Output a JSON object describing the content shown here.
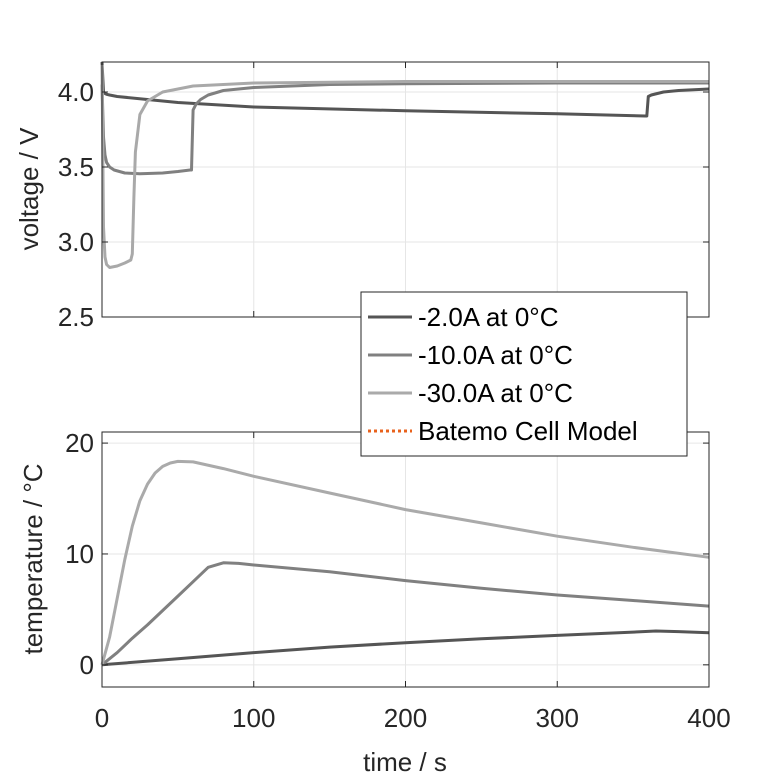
{
  "chart_data": [
    {
      "type": "line",
      "ylabel": "voltage / V",
      "xlim": [
        0,
        400
      ],
      "ylim": [
        2.5,
        4.2
      ],
      "yticks": [
        2.5,
        3.0,
        3.5,
        4.0
      ],
      "ytick_labels": [
        "2.5",
        "3.0",
        "3.5",
        "4.0"
      ],
      "xticks": [
        0,
        100,
        200,
        300,
        400
      ],
      "grid": true,
      "series": [
        {
          "name": "-2.0A at 0°C",
          "color": "#555555",
          "x": [
            0,
            1,
            2,
            3,
            5,
            10,
            50,
            100,
            200,
            300,
            358,
            359,
            360,
            362,
            370,
            380,
            400
          ],
          "y": [
            4.2,
            4.0,
            3.99,
            3.985,
            3.98,
            3.97,
            3.93,
            3.9,
            3.875,
            3.855,
            3.84,
            3.84,
            3.97,
            3.98,
            4.0,
            4.01,
            4.02
          ]
        },
        {
          "name": "-10.0A at 0°C",
          "color": "#808080",
          "x": [
            0,
            1,
            2,
            3,
            5,
            8,
            15,
            25,
            40,
            50,
            58,
            59,
            60,
            62,
            65,
            70,
            80,
            100,
            150,
            200,
            300,
            400
          ],
          "y": [
            4.05,
            3.7,
            3.58,
            3.53,
            3.5,
            3.48,
            3.46,
            3.455,
            3.46,
            3.47,
            3.48,
            3.48,
            3.88,
            3.92,
            3.95,
            3.98,
            4.01,
            4.03,
            4.05,
            4.055,
            4.06,
            4.06
          ]
        },
        {
          "name": "-30.0A at 0°C",
          "color": "#a9a9a9",
          "x": [
            0,
            1,
            2,
            3,
            5,
            10,
            15,
            19,
            20,
            21,
            22,
            25,
            30,
            40,
            60,
            100,
            200,
            400
          ],
          "y": [
            4.18,
            3.1,
            2.9,
            2.85,
            2.83,
            2.84,
            2.86,
            2.88,
            2.92,
            3.3,
            3.6,
            3.85,
            3.94,
            4.0,
            4.04,
            4.06,
            4.07,
            4.07
          ]
        }
      ]
    },
    {
      "type": "line",
      "xlabel": "time / s",
      "ylabel": "temperature / °C",
      "xlim": [
        0,
        400
      ],
      "ylim": [
        -2,
        21
      ],
      "yticks": [
        0,
        10,
        20
      ],
      "ytick_labels": [
        "0",
        "10",
        "20"
      ],
      "xticks": [
        0,
        100,
        200,
        300,
        400
      ],
      "xtick_labels": [
        "0",
        "100",
        "200",
        "300",
        "400"
      ],
      "grid": true,
      "series": [
        {
          "name": "-2.0A at 0°C",
          "color": "#555555",
          "x": [
            0,
            50,
            100,
            150,
            200,
            250,
            300,
            350,
            365,
            380,
            400
          ],
          "y": [
            0,
            0.55,
            1.1,
            1.6,
            2.0,
            2.35,
            2.65,
            2.95,
            3.05,
            3.0,
            2.9
          ]
        },
        {
          "name": "-10.0A at 0°C",
          "color": "#808080",
          "x": [
            0,
            10,
            20,
            30,
            40,
            50,
            60,
            70,
            80,
            90,
            100,
            150,
            200,
            250,
            300,
            350,
            400
          ],
          "y": [
            0,
            1.1,
            2.4,
            3.6,
            4.9,
            6.2,
            7.5,
            8.8,
            9.2,
            9.15,
            9.0,
            8.4,
            7.6,
            6.9,
            6.3,
            5.8,
            5.3
          ]
        },
        {
          "name": "-30.0A at 0°C",
          "color": "#aaaaaa",
          "x": [
            0,
            5,
            10,
            15,
            20,
            25,
            30,
            35,
            40,
            45,
            50,
            60,
            80,
            100,
            150,
            200,
            250,
            300,
            350,
            400
          ],
          "y": [
            0,
            2.5,
            6.0,
            9.5,
            12.5,
            14.8,
            16.3,
            17.3,
            17.9,
            18.2,
            18.35,
            18.3,
            17.7,
            17.0,
            15.5,
            14.0,
            12.8,
            11.6,
            10.6,
            9.7
          ]
        }
      ]
    }
  ],
  "legend": {
    "position": "center-right",
    "entries": [
      {
        "label": "-2.0A at 0°C",
        "color": "#555555",
        "style": "solid"
      },
      {
        "label": "-10.0A at 0°C",
        "color": "#808080",
        "style": "solid"
      },
      {
        "label": "-30.0A at 0°C",
        "color": "#aaaaaa",
        "style": "solid"
      },
      {
        "label": "Batemo Cell Model",
        "color": "#e8621c",
        "style": "dotted"
      }
    ]
  }
}
